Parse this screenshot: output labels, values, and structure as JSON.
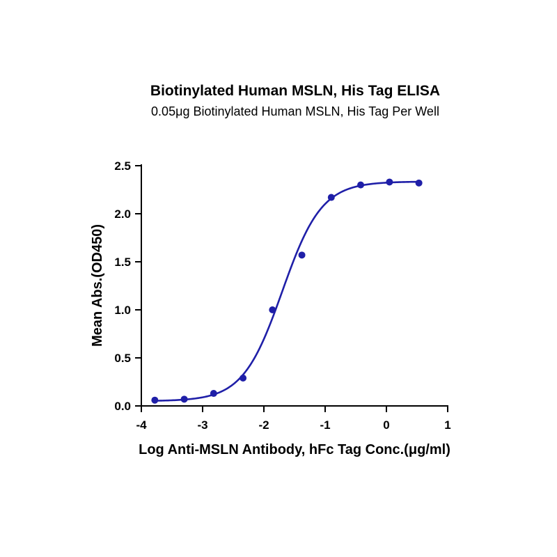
{
  "chart_data": {
    "type": "scatter",
    "title": "Biotinylated Human MSLN, His Tag ELISA",
    "subtitle": "0.05μg Biotinylated Human MSLN, His Tag Per Well",
    "xlabel": "Log Anti-MSLN Antibody, hFc Tag Conc.(μg/ml)",
    "ylabel": "Mean Abs.(OD450)",
    "xlim": [
      -4,
      1
    ],
    "ylim": [
      0,
      2.5
    ],
    "xticks": [
      "-4",
      "-3",
      "-2",
      "-1",
      "0",
      "1"
    ],
    "yticks": [
      "0.0",
      "0.5",
      "1.0",
      "1.5",
      "2.0",
      "2.5"
    ],
    "grid": false,
    "color": "#1f1fa8",
    "series": [
      {
        "x": [
          -3.78,
          -3.3,
          -2.82,
          -2.34,
          -1.86,
          -1.38,
          -0.9,
          -0.42,
          0.05,
          0.53
        ],
        "y": [
          0.06,
          0.07,
          0.13,
          0.29,
          1.0,
          1.57,
          2.17,
          2.3,
          2.33,
          2.32
        ]
      }
    ],
    "fit": {
      "model": "4PL",
      "bottom": 0.05,
      "top": 2.335,
      "log_ec50": -1.7,
      "hill_slope": 1.35,
      "x_range": [
        -3.78,
        0.53
      ]
    }
  }
}
